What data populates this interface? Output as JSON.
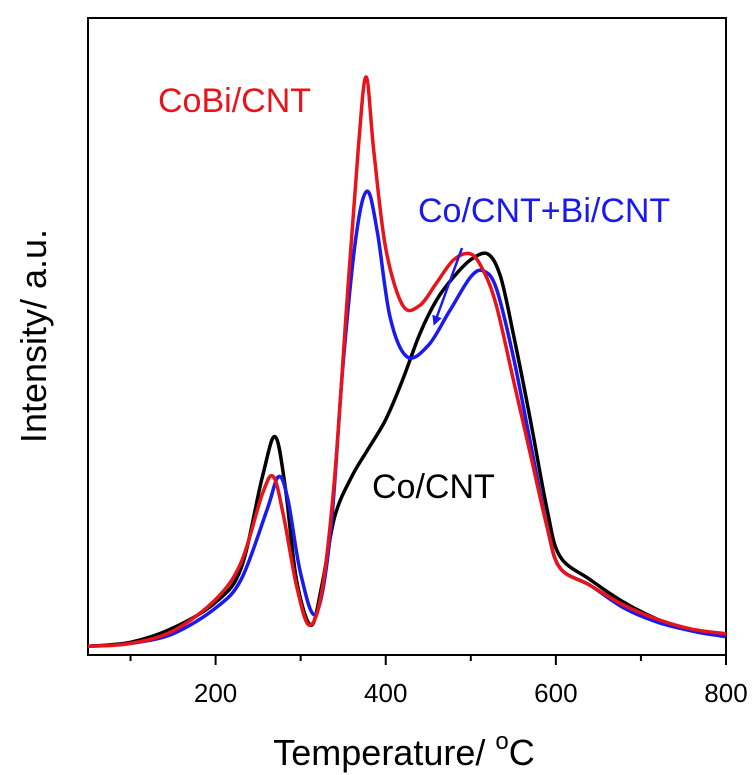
{
  "chart_data": {
    "type": "line",
    "xlabel": "Temperature/ °C",
    "xlabel_main": "Temperature/ ",
    "xlabel_unit_sup": "o",
    "xlabel_unit": "C",
    "ylabel": "Intensity/ a.u.",
    "xlim": [
      50,
      800
    ],
    "ylim": [
      0,
      100
    ],
    "xticks_major": [
      200,
      400,
      600,
      800
    ],
    "xticks_major_labels": [
      "200",
      "400",
      "600",
      "800"
    ],
    "xticks_minor": [
      100,
      300,
      500,
      700
    ],
    "y_tick_labels": false,
    "grid": false,
    "series": [
      {
        "name": "CoBi/CNT",
        "color": "#e8141a",
        "x": [
          50,
          100,
          150,
          200,
          230,
          255,
          268,
          280,
          295,
          310,
          325,
          340,
          355,
          368,
          377,
          386,
          400,
          420,
          440,
          460,
          480,
          500,
          515,
          530,
          550,
          570,
          590,
          605,
          640,
          680,
          720,
          760,
          800
        ],
        "y": [
          0.3,
          0.8,
          3,
          8.5,
          15,
          27,
          30,
          23,
          11,
          4,
          10,
          30,
          62,
          88,
          100,
          87,
          70,
          60,
          60,
          64,
          68,
          69,
          66,
          60,
          47,
          34,
          21,
          14,
          11,
          7.5,
          5,
          3.3,
          2.5
        ]
      },
      {
        "name": "Co/CNT+Bi/CNT",
        "color": "#1a1aee",
        "x": [
          50,
          100,
          150,
          200,
          230,
          260,
          274,
          285,
          300,
          318,
          335,
          350,
          365,
          378,
          390,
          405,
          425,
          450,
          475,
          500,
          515,
          530,
          550,
          570,
          590,
          605,
          640,
          680,
          720,
          760,
          800
        ],
        "y": [
          0.3,
          0.8,
          2.5,
          7,
          12,
          24,
          30,
          26,
          13,
          6,
          20,
          50,
          72,
          80,
          73,
          58,
          51,
          53,
          59,
          65,
          66,
          63,
          51,
          36,
          21,
          14,
          11,
          7,
          4.5,
          3,
          2
        ]
      },
      {
        "name": "Co/CNT",
        "color": "#000000",
        "x": [
          50,
          100,
          150,
          200,
          230,
          255,
          270,
          282,
          295,
          312,
          325,
          340,
          360,
          380,
          400,
          420,
          440,
          460,
          480,
          500,
          520,
          535,
          550,
          570,
          590,
          605,
          640,
          680,
          720,
          760,
          800
        ],
        "y": [
          0.3,
          1,
          3.5,
          8,
          14,
          30,
          37,
          28,
          12,
          4,
          11,
          23,
          30,
          35,
          40,
          47,
          55,
          61,
          65,
          68,
          69,
          65,
          55,
          40,
          24,
          16,
          12,
          8,
          5,
          3,
          2
        ]
      }
    ],
    "annotations": [
      {
        "text": "CoBi/CNT",
        "color": "#e8141a"
      },
      {
        "text": "Co/CNT+Bi/CNT",
        "color": "#1a1aee"
      },
      {
        "text": "Co/CNT",
        "color": "#000000"
      }
    ]
  }
}
